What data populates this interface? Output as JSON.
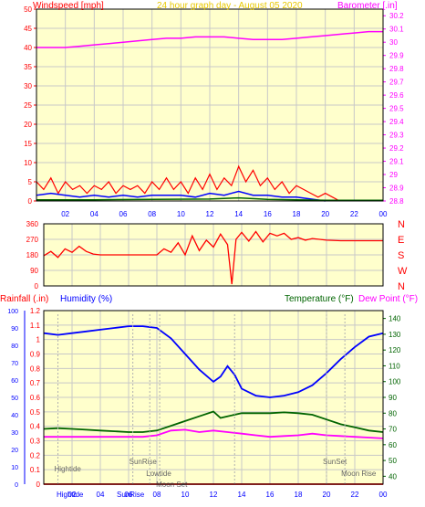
{
  "colors": {
    "panel_bg": "#ffffcc",
    "grid": "#c8c8c8",
    "axis": "#000000",
    "red": "#ff0000",
    "blue": "#0000ff",
    "green": "#006400",
    "magenta": "#ff00ff",
    "text_gray": "#666666",
    "title_yellow": "#e8c800"
  },
  "chart_data": [
    {
      "type": "line",
      "title": "24 hour graph day - August 05 2020",
      "y_left_label": "Windspeed [mph]",
      "y_right_label": "Barometer [.in]",
      "x_ticks": [
        "02",
        "04",
        "06",
        "08",
        "10",
        "12",
        "14",
        "16",
        "18",
        "20",
        "22",
        "00"
      ],
      "y_left_ticks": [
        "0",
        "5",
        "10",
        "15",
        "20",
        "25",
        "30",
        "35",
        "40",
        "45",
        "50"
      ],
      "y_left_range": [
        0,
        50
      ],
      "y_right_ticks": [
        "28.8",
        "28.9",
        "29",
        "29.1",
        "29.2",
        "29.3",
        "29.4",
        "29.5",
        "29.6",
        "29.7",
        "29.8",
        "29.9",
        "30",
        "30.1",
        "30.2"
      ],
      "y_right_range": [
        28.8,
        30.25
      ],
      "series": [
        {
          "name": "Barometer",
          "color": "magenta",
          "axis": "right",
          "x": [
            0,
            1,
            2,
            3,
            4,
            5,
            6,
            7,
            8,
            9,
            10,
            11,
            12,
            13,
            14,
            15,
            16,
            17,
            18,
            19,
            20,
            21,
            22,
            23,
            24
          ],
          "y": [
            29.96,
            29.96,
            29.96,
            29.97,
            29.98,
            29.99,
            30.0,
            30.01,
            30.02,
            30.03,
            30.03,
            30.04,
            30.04,
            30.04,
            30.03,
            30.02,
            30.02,
            30.02,
            30.03,
            30.04,
            30.05,
            30.06,
            30.07,
            30.08,
            30.08
          ]
        },
        {
          "name": "Wind gust",
          "color": "red",
          "axis": "left",
          "x": [
            0,
            0.5,
            1,
            1.5,
            2,
            2.5,
            3,
            3.5,
            4,
            4.5,
            5,
            5.5,
            6,
            6.5,
            7,
            7.5,
            8,
            8.5,
            9,
            9.5,
            10,
            10.5,
            11,
            11.5,
            12,
            12.5,
            13,
            13.5,
            14,
            14.5,
            15,
            15.5,
            16,
            16.5,
            17,
            17.5,
            18,
            18.5,
            19,
            19.5,
            20,
            20.5,
            21
          ],
          "y": [
            5,
            3,
            6,
            2,
            5,
            3,
            4,
            2,
            4,
            3,
            5,
            2,
            4,
            3,
            4,
            2,
            5,
            3,
            6,
            3,
            5,
            2,
            6,
            3,
            7,
            3,
            6,
            4,
            9,
            5,
            8,
            4,
            6,
            3,
            5,
            2,
            4,
            3,
            2,
            1,
            2,
            1,
            0
          ]
        },
        {
          "name": "Wind avg",
          "color": "blue",
          "axis": "left",
          "x": [
            0,
            1,
            2,
            3,
            4,
            5,
            6,
            7,
            8,
            9,
            10,
            11,
            12,
            13,
            14,
            15,
            16,
            17,
            18,
            19,
            20
          ],
          "y": [
            1.5,
            2,
            1.5,
            1,
            1.5,
            1,
            1.5,
            1,
            1.5,
            1.5,
            1.5,
            1,
            2,
            1.5,
            2.5,
            1.5,
            1.5,
            1,
            1,
            0.5,
            0
          ]
        },
        {
          "name": "Wind low",
          "color": "green",
          "axis": "left",
          "x": [
            0,
            4,
            8,
            12,
            14,
            16,
            20,
            24
          ],
          "y": [
            0.3,
            0.3,
            0.4,
            0.5,
            0.8,
            0.4,
            0.2,
            0.2
          ]
        }
      ]
    },
    {
      "type": "line",
      "y_ticks": [
        "0",
        "90",
        "180",
        "270",
        "360"
      ],
      "y_range": [
        0,
        360
      ],
      "right_labels": [
        "N",
        "W",
        "S",
        "E",
        "N"
      ],
      "series": [
        {
          "name": "Wind direction",
          "color": "red",
          "x": [
            0,
            0.5,
            1,
            1.5,
            2,
            2.5,
            3,
            3.5,
            4,
            5,
            6,
            7,
            8,
            8.5,
            9,
            9.5,
            10,
            10.5,
            11,
            11.5,
            12,
            12.5,
            13,
            13.3,
            13.6,
            14,
            14.5,
            15,
            15.5,
            16,
            16.5,
            17,
            17.5,
            18,
            18.5,
            19,
            19.5,
            20,
            21,
            22,
            23,
            24
          ],
          "y": [
            175,
            200,
            165,
            215,
            195,
            230,
            200,
            185,
            180,
            180,
            180,
            180,
            180,
            215,
            195,
            250,
            180,
            290,
            205,
            265,
            225,
            300,
            240,
            10,
            270,
            310,
            260,
            315,
            255,
            305,
            290,
            305,
            270,
            280,
            265,
            275,
            270,
            265,
            262,
            262,
            262,
            262
          ]
        }
      ]
    },
    {
      "type": "line",
      "labels": {
        "rainfall": "Rainfall (.in)",
        "humidity": "Humidity (%)",
        "temperature": "Temperature (°F)",
        "dewpoint": "Dew Point (°F)"
      },
      "x_ticks": [
        "02",
        "04",
        "06",
        "08",
        "10",
        "12",
        "14",
        "16",
        "18",
        "20",
        "22",
        "00"
      ],
      "humidity_ticks": [
        "0",
        "10",
        "20",
        "30",
        "40",
        "50",
        "60",
        "70",
        "80",
        "90",
        "100"
      ],
      "humidity_range": [
        0,
        100
      ],
      "rainfall_ticks": [
        "0",
        "0.1",
        "0.2",
        "0.3",
        "0.4",
        "0.5",
        "0.6",
        "0.7",
        "0.8",
        "0.9",
        "1",
        "1.1",
        "1.2"
      ],
      "rainfall_range": [
        0,
        1.2
      ],
      "temp_ticks": [
        "40",
        "50",
        "60",
        "70",
        "80",
        "90",
        "100",
        "110",
        "120",
        "130",
        "140"
      ],
      "temp_range": [
        35,
        145
      ],
      "series": [
        {
          "name": "Humidity",
          "color": "blue",
          "axis": "humidity",
          "x": [
            0,
            1,
            2,
            3,
            4,
            5,
            6,
            7,
            8,
            9,
            10,
            11,
            12,
            12.5,
            13,
            13.5,
            14,
            15,
            16,
            17,
            18,
            19,
            20,
            21,
            22,
            23,
            24
          ],
          "y": [
            87,
            86,
            87,
            88,
            89,
            90,
            91,
            91,
            90,
            84,
            75,
            66,
            59,
            62,
            68,
            63,
            55,
            51,
            50,
            51,
            53,
            57,
            64,
            72,
            79,
            85,
            87
          ]
        },
        {
          "name": "Temperature",
          "color": "green",
          "axis": "temp",
          "x": [
            0,
            1,
            2,
            3,
            4,
            5,
            6,
            7,
            8,
            9,
            10,
            11,
            12,
            12.5,
            13,
            14,
            15,
            16,
            17,
            18,
            19,
            20,
            21,
            22,
            23,
            24
          ],
          "y": [
            70,
            70.5,
            70,
            69.5,
            69,
            68.5,
            68,
            68,
            69,
            72,
            75,
            78,
            81,
            77,
            78,
            80,
            80,
            80,
            80.5,
            80,
            79,
            76,
            73,
            71,
            69,
            68
          ]
        },
        {
          "name": "Dew Point",
          "color": "magenta",
          "axis": "temp",
          "x": [
            0,
            2,
            4,
            6,
            7,
            8,
            9,
            10,
            11,
            12,
            13,
            14,
            15,
            16,
            17,
            18,
            19,
            20,
            21,
            22,
            23,
            24
          ],
          "y": [
            65,
            65,
            65,
            65,
            65,
            66,
            69,
            69.5,
            68,
            69,
            68,
            67,
            66,
            65,
            65.5,
            66,
            67,
            66,
            65.5,
            65,
            64.5,
            64
          ]
        },
        {
          "name": "Rainfall",
          "color": "red",
          "axis": "rainfall",
          "x": [
            0,
            24
          ],
          "y": [
            0,
            0
          ]
        }
      ],
      "events": [
        {
          "label": "Hightide",
          "x": 1.0,
          "line_row": "low",
          "text_row": "top"
        },
        {
          "label": "SunRise",
          "x": 6.3,
          "line_row": "low",
          "text_row": "high"
        },
        {
          "label": "Lowtide",
          "x": 7.5,
          "line_row": "low",
          "text_row": "mid"
        },
        {
          "label": "Moon Set",
          "x": 8.2,
          "line_row": "low",
          "text_row": "midlow"
        },
        {
          "label": "SunSet",
          "x": 20.0,
          "line_row": "low",
          "text_row": "high"
        },
        {
          "label": "Moon Rise",
          "x": 21.3,
          "line_row": "low",
          "text_row": "mid"
        },
        {
          "label": "Hightide",
          "x": 13.5,
          "line_row": "low",
          "text_row": "none"
        }
      ],
      "bottom_labels": [
        "Hightide",
        "SunRise"
      ]
    }
  ]
}
